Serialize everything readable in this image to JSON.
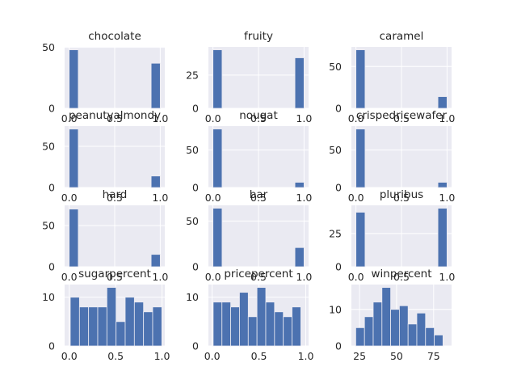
{
  "colors": {
    "background": "#eaeaf2",
    "bar": "#4c72b0",
    "grid": "#ffffff",
    "text": "#262626"
  },
  "chart_data": [
    {
      "type": "bar",
      "title": "chocolate",
      "xlim": [
        -0.05,
        1.05
      ],
      "ylim": [
        0,
        50.4
      ],
      "bin_edges": [
        0,
        0.1,
        0.2,
        0.3,
        0.4,
        0.5,
        0.6,
        0.7,
        0.8,
        0.9,
        1.0
      ],
      "counts": [
        48,
        0,
        0,
        0,
        0,
        0,
        0,
        0,
        0,
        37
      ],
      "xticks": [
        0,
        0.5,
        1
      ],
      "xticklabels": [
        "0.0",
        "0.5",
        "1.0"
      ],
      "yticks": [
        0,
        50
      ],
      "yticklabels": [
        "0",
        "50"
      ],
      "grid": true
    },
    {
      "type": "bar",
      "title": "fruity",
      "xlim": [
        -0.05,
        1.05
      ],
      "ylim": [
        0,
        46.2
      ],
      "bin_edges": [
        0,
        0.1,
        0.2,
        0.3,
        0.4,
        0.5,
        0.6,
        0.7,
        0.8,
        0.9,
        1.0
      ],
      "counts": [
        44,
        0,
        0,
        0,
        0,
        0,
        0,
        0,
        0,
        38
      ],
      "xticks": [
        0,
        0.5,
        1
      ],
      "xticklabels": [
        "0.0",
        "0.5",
        "1.0"
      ],
      "yticks": [
        0,
        25
      ],
      "yticklabels": [
        "0",
        "25"
      ],
      "grid": true
    },
    {
      "type": "bar",
      "title": "caramel",
      "xlim": [
        -0.05,
        1.05
      ],
      "ylim": [
        0,
        73.5
      ],
      "bin_edges": [
        0,
        0.1,
        0.2,
        0.3,
        0.4,
        0.5,
        0.6,
        0.7,
        0.8,
        0.9,
        1.0
      ],
      "counts": [
        70,
        0,
        0,
        0,
        0,
        0,
        0,
        0,
        0,
        14
      ],
      "xticks": [
        0,
        0.5,
        1
      ],
      "xticklabels": [
        "0.0",
        "0.5",
        "1.0"
      ],
      "yticks": [
        0,
        50
      ],
      "yticklabels": [
        "0",
        "50"
      ],
      "grid": true
    },
    {
      "type": "bar",
      "title": "peanutyalmondy",
      "xlim": [
        -0.05,
        1.05
      ],
      "ylim": [
        0,
        74.6
      ],
      "bin_edges": [
        0,
        0.1,
        0.2,
        0.3,
        0.4,
        0.5,
        0.6,
        0.7,
        0.8,
        0.9,
        1.0
      ],
      "counts": [
        71,
        0,
        0,
        0,
        0,
        0,
        0,
        0,
        0,
        14
      ],
      "xticks": [
        0,
        0.5,
        1
      ],
      "xticklabels": [
        "0.0",
        "0.5",
        "1.0"
      ],
      "yticks": [
        0,
        50
      ],
      "yticklabels": [
        "0",
        "50"
      ],
      "grid": true
    },
    {
      "type": "bar",
      "title": "nougat",
      "xlim": [
        -0.05,
        1.05
      ],
      "ylim": [
        0,
        81.9
      ],
      "bin_edges": [
        0,
        0.1,
        0.2,
        0.3,
        0.4,
        0.5,
        0.6,
        0.7,
        0.8,
        0.9,
        1.0
      ],
      "counts": [
        78,
        0,
        0,
        0,
        0,
        0,
        0,
        0,
        0,
        7
      ],
      "xticks": [
        0,
        0.5,
        1
      ],
      "xticklabels": [
        "0.0",
        "0.5",
        "1.0"
      ],
      "yticks": [
        0,
        50
      ],
      "yticklabels": [
        "0",
        "50"
      ],
      "grid": true
    },
    {
      "type": "bar",
      "title": "crispedricewafer",
      "xlim": [
        -0.05,
        1.05
      ],
      "ylim": [
        0,
        81.9
      ],
      "bin_edges": [
        0,
        0.1,
        0.2,
        0.3,
        0.4,
        0.5,
        0.6,
        0.7,
        0.8,
        0.9,
        1.0
      ],
      "counts": [
        78,
        0,
        0,
        0,
        0,
        0,
        0,
        0,
        0,
        7
      ],
      "xticks": [
        0,
        0.5,
        1
      ],
      "xticklabels": [
        "0.0",
        "0.5",
        "1.0"
      ],
      "yticks": [
        0,
        50
      ],
      "yticklabels": [
        "0",
        "50"
      ],
      "grid": true
    },
    {
      "type": "bar",
      "title": "hard",
      "xlim": [
        -0.05,
        1.05
      ],
      "ylim": [
        0,
        74.6
      ],
      "bin_edges": [
        0,
        0.1,
        0.2,
        0.3,
        0.4,
        0.5,
        0.6,
        0.7,
        0.8,
        0.9,
        1.0
      ],
      "counts": [
        70,
        0,
        0,
        0,
        0,
        0,
        0,
        0,
        0,
        15
      ],
      "xticks": [
        0,
        0.5,
        1
      ],
      "xticklabels": [
        "0.0",
        "0.5",
        "1.0"
      ],
      "yticks": [
        0,
        50
      ],
      "yticklabels": [
        "0",
        "50"
      ],
      "grid": true
    },
    {
      "type": "bar",
      "title": "bar",
      "xlim": [
        -0.05,
        1.05
      ],
      "ylim": [
        0,
        67.2
      ],
      "bin_edges": [
        0,
        0.1,
        0.2,
        0.3,
        0.4,
        0.5,
        0.6,
        0.7,
        0.8,
        0.9,
        1.0
      ],
      "counts": [
        64,
        0,
        0,
        0,
        0,
        0,
        0,
        0,
        0,
        21
      ],
      "xticks": [
        0,
        0.5,
        1
      ],
      "xticklabels": [
        "0.0",
        "0.5",
        "1.0"
      ],
      "yticks": [
        0,
        50
      ],
      "yticklabels": [
        "0",
        "50"
      ],
      "grid": true
    },
    {
      "type": "bar",
      "title": "pluribus",
      "xlim": [
        -0.05,
        1.05
      ],
      "ylim": [
        0,
        46.2
      ],
      "bin_edges": [
        0,
        0.1,
        0.2,
        0.3,
        0.4,
        0.5,
        0.6,
        0.7,
        0.8,
        0.9,
        1.0
      ],
      "counts": [
        41,
        0,
        0,
        0,
        0,
        0,
        0,
        0,
        0,
        44
      ],
      "xticks": [
        0,
        0.5,
        1
      ],
      "xticklabels": [
        "0.0",
        "0.5",
        "1.0"
      ],
      "yticks": [
        0,
        25
      ],
      "yticklabels": [
        "0",
        "25"
      ],
      "grid": true
    },
    {
      "type": "bar",
      "title": "sugarpercent",
      "xlim": [
        -0.05,
        1.03
      ],
      "ylim": [
        0,
        12.6
      ],
      "bin_edges": [
        0.011,
        0.1097,
        0.2084,
        0.3071,
        0.4058,
        0.5045,
        0.6032,
        0.7019,
        0.8006,
        0.8993,
        0.998
      ],
      "counts": [
        10,
        8,
        8,
        8,
        12,
        5,
        10,
        9,
        7,
        8
      ],
      "xticks": [
        0,
        0.5,
        1
      ],
      "xticklabels": [
        "0.0",
        "0.5",
        "1.0"
      ],
      "yticks": [
        0,
        10
      ],
      "yticklabels": [
        "0",
        "10"
      ],
      "grid": true
    },
    {
      "type": "bar",
      "title": "pricepercent",
      "xlim": [
        -0.04,
        1.03
      ],
      "ylim": [
        0,
        12.6
      ],
      "bin_edges": [
        0.011,
        0.1046,
        0.1982,
        0.2918,
        0.3854,
        0.479,
        0.5726,
        0.6662,
        0.7598,
        0.8534,
        0.947
      ],
      "counts": [
        9,
        9,
        8,
        11,
        6,
        12,
        9,
        7,
        6,
        8
      ],
      "xticks": [
        0,
        0.5,
        1
      ],
      "xticklabels": [
        "0.0",
        "0.5",
        "1.0"
      ],
      "yticks": [
        0,
        10
      ],
      "yticklabels": [
        "0",
        "10"
      ],
      "grid": true
    },
    {
      "type": "bar",
      "title": "winpercent",
      "xlim": [
        19.5,
        87.1
      ],
      "ylim": [
        0,
        16.8
      ],
      "bin_edges": [
        22.45,
        28.34,
        34.22,
        40.11,
        45.99,
        51.88,
        57.76,
        63.65,
        69.53,
        75.42,
        81.3
      ],
      "counts": [
        5,
        8,
        12,
        16,
        10,
        11,
        6,
        9,
        5,
        3
      ],
      "xticks": [
        25,
        50,
        75
      ],
      "xticklabels": [
        "25",
        "50",
        "75"
      ],
      "yticks": [
        0,
        10
      ],
      "yticklabels": [
        "0",
        "10"
      ],
      "grid": true
    }
  ]
}
